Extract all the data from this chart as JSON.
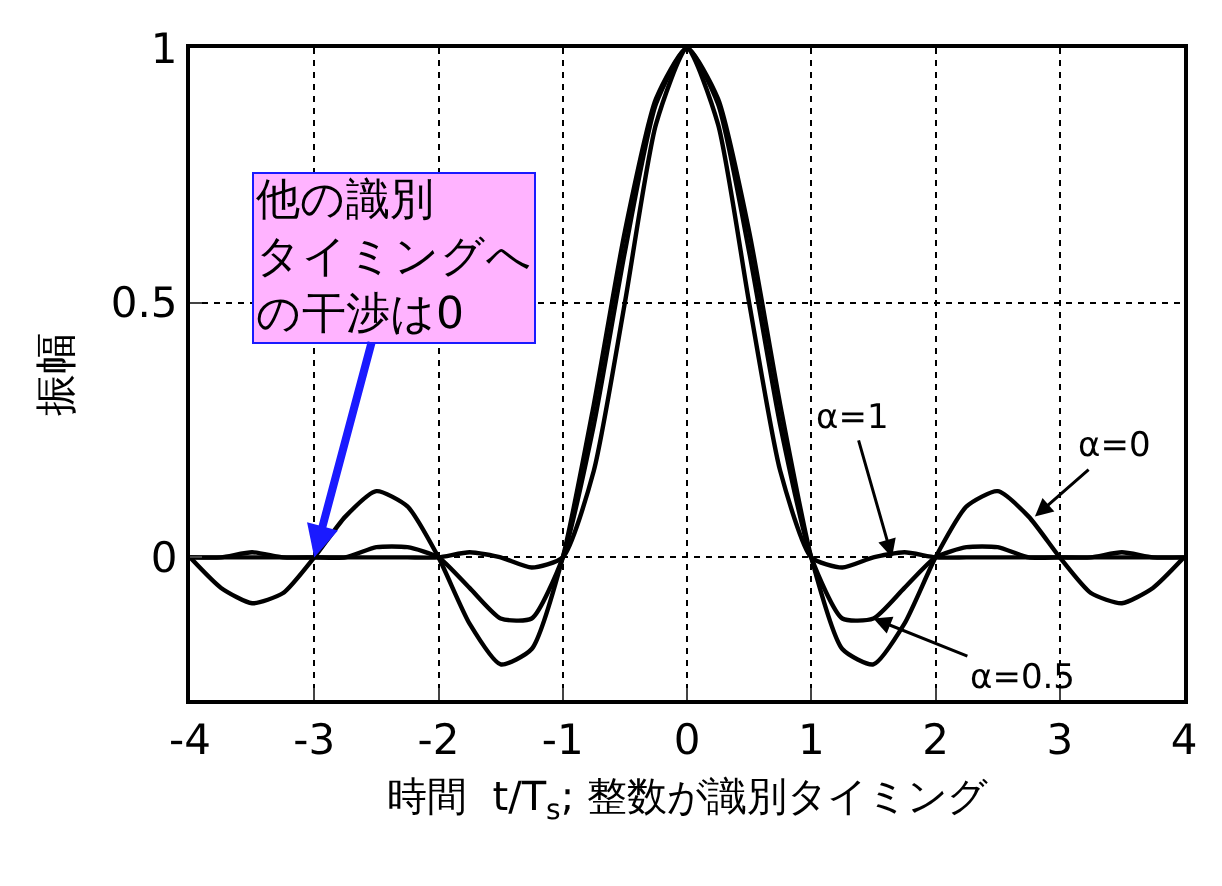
{
  "chart_data": {
    "type": "line",
    "x": [
      -4,
      -3.75,
      -3.5,
      -3.25,
      -3,
      -2.75,
      -2.5,
      -2.25,
      -2,
      -1.75,
      -1.5,
      -1.25,
      -1,
      -0.75,
      -0.5,
      -0.25,
      0,
      0.25,
      0.5,
      0.75,
      1,
      1.25,
      1.5,
      1.75,
      2,
      2.25,
      2.5,
      2.75,
      3,
      3.25,
      3.5,
      3.75,
      4
    ],
    "series": [
      {
        "color": "#000000",
        "values": [
          0,
          -0.06,
          -0.09,
          -0.07,
          0,
          0.08,
          0.13,
          0.1,
          0,
          -0.13,
          -0.21,
          -0.18,
          0,
          0.3,
          0.64,
          0.9,
          1,
          0.9,
          0.64,
          0.3,
          0,
          -0.18,
          -0.21,
          -0.13,
          0,
          0.1,
          0.13,
          0.08,
          0,
          -0.07,
          -0.09,
          -0.06,
          0
        ]
      },
      {
        "color": "#000000",
        "values": [
          0,
          0.0,
          0.01,
          0.0,
          0,
          0.0,
          0.02,
          0.02,
          0,
          -0.06,
          -0.12,
          -0.12,
          0,
          0.26,
          0.6,
          0.89,
          1,
          0.89,
          0.6,
          0.26,
          0,
          -0.12,
          -0.12,
          -0.06,
          0,
          0.02,
          0.02,
          0.0,
          0,
          0.0,
          0.01,
          0.0,
          0
        ]
      },
      {
        "color": "#000000",
        "values": [
          0,
          0,
          0,
          0,
          0,
          0,
          0,
          0,
          0,
          0.01,
          0,
          -0.02,
          0,
          0.17,
          0.5,
          0.85,
          1,
          0.85,
          0.5,
          0.17,
          0,
          -0.02,
          0,
          0.01,
          0,
          0,
          0,
          0,
          0,
          0,
          0,
          0,
          0
        ]
      }
    ],
    "xlabel": "時間  t/T$_{s}$; 整数が識別タイミング",
    "ylabel": "振幅",
    "xlim": [
      -4,
      4
    ],
    "xticks": [
      -4,
      -3,
      -2,
      -1,
      0,
      1,
      2,
      3,
      4
    ],
    "ylim": [
      -0.28,
      1
    ],
    "yticks": [
      0,
      0.5,
      1
    ],
    "grid": true,
    "marker": "none",
    "line_style": "solid",
    "annotations": [
      {
        "text": "α=0",
        "x": 2.8,
        "y": 0.08
      },
      {
        "text": "α=1",
        "x": 1.65,
        "y": 0.0
      },
      {
        "text": "α=0.5",
        "x": 1.5,
        "y": -0.12
      },
      {
        "text": "他の識別タイミングへの干渉は0",
        "x": -3,
        "y": 0
      }
    ]
  }
}
